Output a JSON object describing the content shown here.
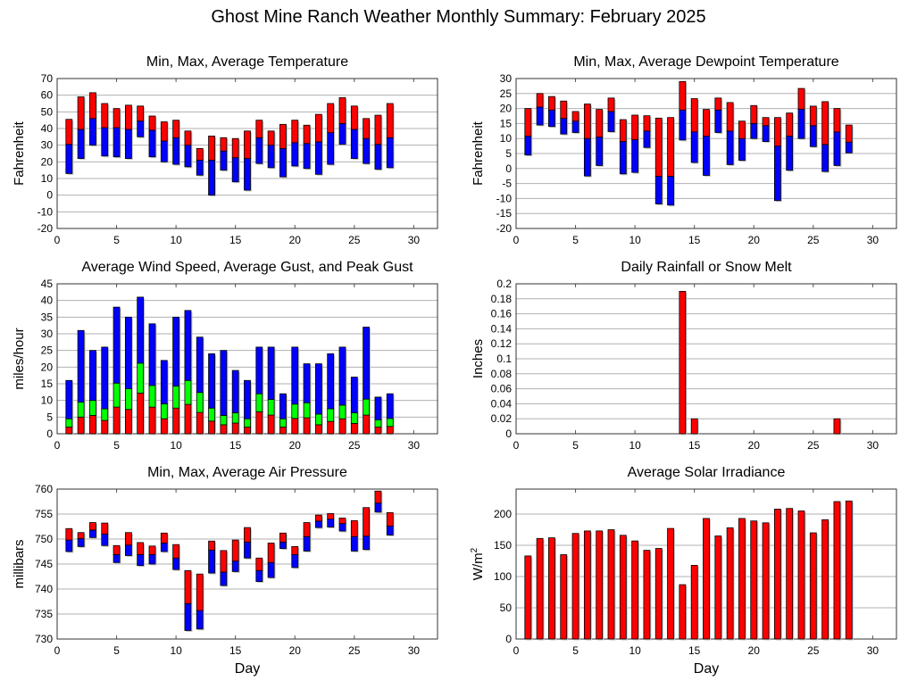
{
  "title": "Ghost Mine Ranch Weather Monthly Summary: February 2025",
  "colors": {
    "max": "#ff0000",
    "avg_low": "#0000ff",
    "green": "#00ff00",
    "grid": "#b0b0b0"
  },
  "chart_data": [
    {
      "type": "bar",
      "title": "Min, Max, Average Temperature",
      "ylabel": "Fahrenheit",
      "xlabel": "",
      "xlim": [
        0,
        32
      ],
      "xticks": [
        0,
        5,
        10,
        15,
        20,
        25,
        30
      ],
      "ylim": [
        -20,
        70
      ],
      "ystep": 10,
      "grid": true,
      "x": [
        1,
        2,
        3,
        4,
        5,
        6,
        7,
        8,
        9,
        10,
        11,
        12,
        13,
        14,
        15,
        16,
        17,
        18,
        19,
        20,
        21,
        22,
        23,
        24,
        25,
        26,
        27,
        28
      ],
      "series": [
        {
          "name": "min",
          "values": [
            13,
            22,
            30,
            23.5,
            23,
            22,
            35,
            23,
            20,
            18.5,
            17,
            12,
            0,
            15,
            8,
            3,
            19,
            16.5,
            11,
            17.5,
            16,
            12.5,
            18.5,
            30.5,
            22,
            19,
            15.5,
            16.5
          ]
        },
        {
          "name": "avg",
          "values": [
            30.5,
            39.5,
            46,
            40.5,
            40.5,
            39.5,
            44.5,
            39,
            32.5,
            34.5,
            30,
            21,
            21,
            26.5,
            22.5,
            22,
            34.5,
            30,
            28,
            31.5,
            31,
            32,
            37.5,
            43,
            39.5,
            34,
            30.5,
            34.5
          ]
        },
        {
          "name": "max",
          "values": [
            45.5,
            59,
            61.5,
            55,
            52,
            54,
            53.5,
            47.5,
            44,
            45,
            38.5,
            28,
            35.5,
            34.5,
            34,
            38.5,
            45,
            38.5,
            42.5,
            45,
            42,
            48.5,
            55,
            58.5,
            53.5,
            46,
            48,
            55
          ]
        }
      ]
    },
    {
      "type": "bar",
      "title": "Min, Max, Average Dewpoint Temperature",
      "ylabel": "Fahrenheit",
      "xlabel": "",
      "xlim": [
        0,
        32
      ],
      "xticks": [
        0,
        5,
        10,
        15,
        20,
        25,
        30
      ],
      "ylim": [
        -20,
        30
      ],
      "ystep": 5,
      "grid": true,
      "x": [
        1,
        2,
        3,
        4,
        5,
        6,
        7,
        8,
        9,
        10,
        11,
        12,
        13,
        14,
        15,
        16,
        17,
        18,
        19,
        20,
        21,
        22,
        23,
        24,
        25,
        26,
        27,
        28
      ],
      "series": [
        {
          "name": "min",
          "values": [
            4.5,
            14.5,
            14,
            11.5,
            12,
            -2.5,
            1,
            12.3,
            -1.8,
            -1.3,
            7,
            -11.8,
            -12.2,
            9.5,
            2,
            -2.3,
            12,
            1.3,
            2.7,
            10,
            9,
            -10.7,
            -0.6,
            10,
            7.3,
            -1,
            1,
            5.2
          ]
        },
        {
          "name": "avg",
          "values": [
            10.8,
            20.5,
            19.5,
            16.7,
            15.8,
            10,
            10.5,
            19,
            9,
            9.6,
            12.5,
            -2.6,
            -2.6,
            19.5,
            12.2,
            10.8,
            19.5,
            12.5,
            10,
            15,
            14.3,
            7.5,
            10.8,
            19.8,
            14.3,
            8,
            12.2,
            8.8
          ]
        },
        {
          "name": "max",
          "values": [
            20,
            25,
            24,
            22.5,
            19,
            21.5,
            19.7,
            23.5,
            16.3,
            17.8,
            17.6,
            16.8,
            17,
            29,
            23.3,
            19.7,
            23.5,
            22,
            15.8,
            21,
            17,
            17,
            18.5,
            26.7,
            20.8,
            22.3,
            20,
            14.5
          ]
        }
      ]
    },
    {
      "type": "bar",
      "title": "Average Wind Speed, Average Gust, and Peak Gust",
      "ylabel": "miles/hour",
      "xlabel": "",
      "xlim": [
        0,
        32
      ],
      "xticks": [
        0,
        5,
        10,
        15,
        20,
        25,
        30
      ],
      "ylim": [
        0,
        45
      ],
      "ystep": 5,
      "grid": true,
      "x": [
        1,
        2,
        3,
        4,
        5,
        6,
        7,
        8,
        9,
        10,
        11,
        12,
        13,
        14,
        15,
        16,
        17,
        18,
        19,
        20,
        21,
        22,
        23,
        24,
        25,
        26,
        27,
        28
      ],
      "series": [
        {
          "name": "average wind speed",
          "values": [
            2,
            5,
            5.5,
            4,
            8,
            7.3,
            12.2,
            8,
            4.5,
            7.7,
            8.8,
            6.4,
            3.8,
            2.7,
            3.2,
            2,
            6.6,
            5.6,
            2,
            4.6,
            4.8,
            2.7,
            3.7,
            4.5,
            3.1,
            5.6,
            2,
            2.2
          ]
        },
        {
          "name": "average gust",
          "values": [
            4.5,
            9.5,
            10,
            7.5,
            15.2,
            13.5,
            21.2,
            14.5,
            9,
            14.3,
            16,
            12.4,
            7.7,
            5.5,
            6.3,
            4.5,
            12,
            10.3,
            4.5,
            8.9,
            9.3,
            5.9,
            7.5,
            8.6,
            6.3,
            10.4,
            4.2,
            4.6
          ]
        },
        {
          "name": "peak gust",
          "values": [
            16,
            31,
            25,
            26,
            38,
            35,
            41,
            33,
            22,
            35,
            37,
            29,
            24,
            25,
            19,
            16,
            26,
            26,
            12,
            26,
            21,
            21,
            24,
            26,
            17,
            32,
            11,
            12
          ]
        }
      ]
    },
    {
      "type": "bar",
      "title": "Daily Rainfall or Snow Melt",
      "ylabel": "Inches",
      "xlabel": "",
      "xlim": [
        0,
        32
      ],
      "xticks": [
        0,
        5,
        10,
        15,
        20,
        25,
        30
      ],
      "ylim": [
        0,
        0.2
      ],
      "ystep": 0.02,
      "grid": true,
      "x": [
        1,
        2,
        3,
        4,
        5,
        6,
        7,
        8,
        9,
        10,
        11,
        12,
        13,
        14,
        15,
        16,
        17,
        18,
        19,
        20,
        21,
        22,
        23,
        24,
        25,
        26,
        27,
        28
      ],
      "series": [
        {
          "name": "rainfall",
          "values": [
            0,
            0,
            0,
            0,
            0,
            0,
            0,
            0,
            0,
            0,
            0,
            0,
            0,
            0.19,
            0.02,
            0,
            0,
            0,
            0,
            0,
            0,
            0,
            0,
            0,
            0,
            0,
            0.02,
            0
          ]
        }
      ]
    },
    {
      "type": "bar",
      "title": "Min, Max, Average Air Pressure",
      "ylabel": "millibars",
      "xlabel": "Day",
      "xlim": [
        0,
        32
      ],
      "xticks": [
        0,
        5,
        10,
        15,
        20,
        25,
        30
      ],
      "ylim": [
        730,
        760
      ],
      "ystep": 5,
      "grid": true,
      "x": [
        1,
        2,
        3,
        4,
        5,
        6,
        7,
        8,
        9,
        10,
        11,
        12,
        13,
        14,
        15,
        16,
        17,
        18,
        19,
        20,
        21,
        22,
        23,
        24,
        25,
        26,
        27,
        28
      ],
      "series": [
        {
          "name": "min",
          "values": [
            747.5,
            748.5,
            750.3,
            748.7,
            745.3,
            746.7,
            744.7,
            745,
            747.5,
            743.9,
            731.7,
            732,
            743.2,
            740.7,
            743.5,
            746.2,
            741.5,
            742.3,
            748.1,
            744.3,
            747.6,
            752.3,
            752.4,
            751.6,
            747.6,
            747.9,
            755.4,
            750.8
          ]
        },
        {
          "name": "avg",
          "values": [
            749.8,
            750.1,
            751.8,
            751,
            746.9,
            748.8,
            746.9,
            746.9,
            749.2,
            746.2,
            737.1,
            735.7,
            747.8,
            743.4,
            745.6,
            749.4,
            743.7,
            745.3,
            749.4,
            746.9,
            750.5,
            753.6,
            754,
            753.1,
            750.5,
            750.6,
            757.2,
            752.6
          ]
        },
        {
          "name": "max",
          "values": [
            752.1,
            751.3,
            753.3,
            753.2,
            748.7,
            751.3,
            749.3,
            748.6,
            751.2,
            748.9,
            743.7,
            743,
            749.6,
            747.7,
            749.8,
            752.3,
            746.2,
            749.2,
            751.2,
            748.5,
            753.3,
            754.8,
            755.1,
            754.2,
            753.7,
            756.3,
            759.6,
            755.3
          ]
        }
      ]
    },
    {
      "type": "bar",
      "title": "Average Solar Irradiance",
      "ylabel": "W/m",
      "ylabel_sup": "2",
      "xlabel": "Day",
      "xlim": [
        0,
        32
      ],
      "xticks": [
        0,
        5,
        10,
        15,
        20,
        25,
        30
      ],
      "ylim": [
        0,
        240
      ],
      "yticks": [
        0,
        50,
        100,
        150,
        200
      ],
      "grid": true,
      "x": [
        1,
        2,
        3,
        4,
        5,
        6,
        7,
        8,
        9,
        10,
        11,
        12,
        13,
        14,
        15,
        16,
        17,
        18,
        19,
        20,
        21,
        22,
        23,
        24,
        25,
        26,
        27,
        28
      ],
      "series": [
        {
          "name": "solar irradiance",
          "values": [
            133,
            161,
            162,
            135,
            169,
            173,
            173,
            175,
            166,
            157,
            142,
            145,
            177,
            87,
            118,
            193,
            165,
            178,
            193,
            189,
            186,
            208,
            209,
            205,
            170,
            191,
            220,
            221
          ]
        }
      ]
    }
  ]
}
